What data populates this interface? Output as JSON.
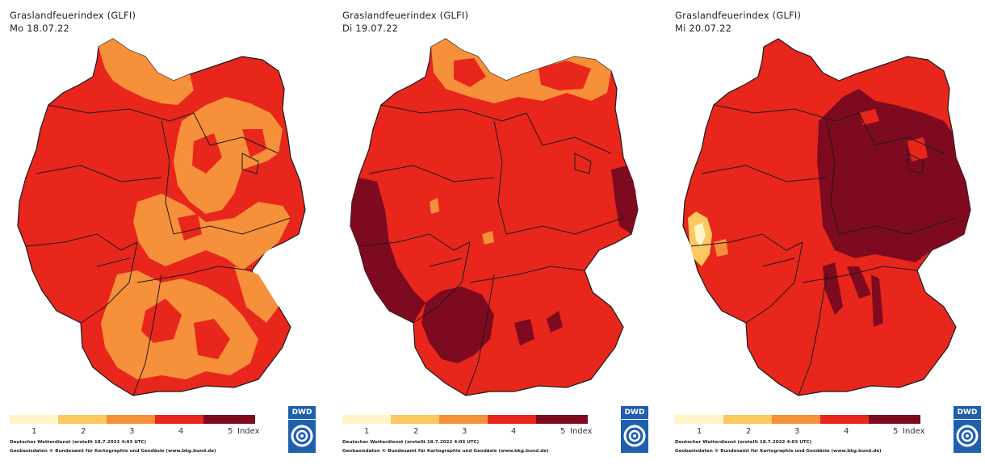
{
  "panels": [
    {
      "title": "Graslandfeuerindex (GLFI)",
      "date": "Mo 18.07.22"
    },
    {
      "title": "Graslandfeuerindex (GLFI)",
      "date": "Di 19.07.22"
    },
    {
      "title": "Graslandfeuerindex (GLFI)",
      "date": "Mi 20.07.22"
    }
  ],
  "legend": {
    "classes": [
      {
        "label": "1",
        "color": "#fff5c8"
      },
      {
        "label": "2",
        "color": "#fcc860"
      },
      {
        "label": "3",
        "color": "#f6903a"
      },
      {
        "label": "4",
        "color": "#e8261c"
      },
      {
        "label": "5",
        "color": "#7e0a1f"
      }
    ],
    "unit_label": "Index"
  },
  "footer": {
    "line1": "Deutscher Wetterdienst (erstellt 18.7.2022 4:03 UTC)",
    "line2": "Geobasisdaten © Bundesamt für Kartographie und Geodäsie (www.bkg.bund.de)"
  },
  "logo": {
    "text": "DWD"
  },
  "colors": {
    "level2": "#fcc860",
    "level3": "#f6903a",
    "level4": "#e8261c",
    "level5": "#7e0a1f",
    "border": "#1a1a1a"
  }
}
